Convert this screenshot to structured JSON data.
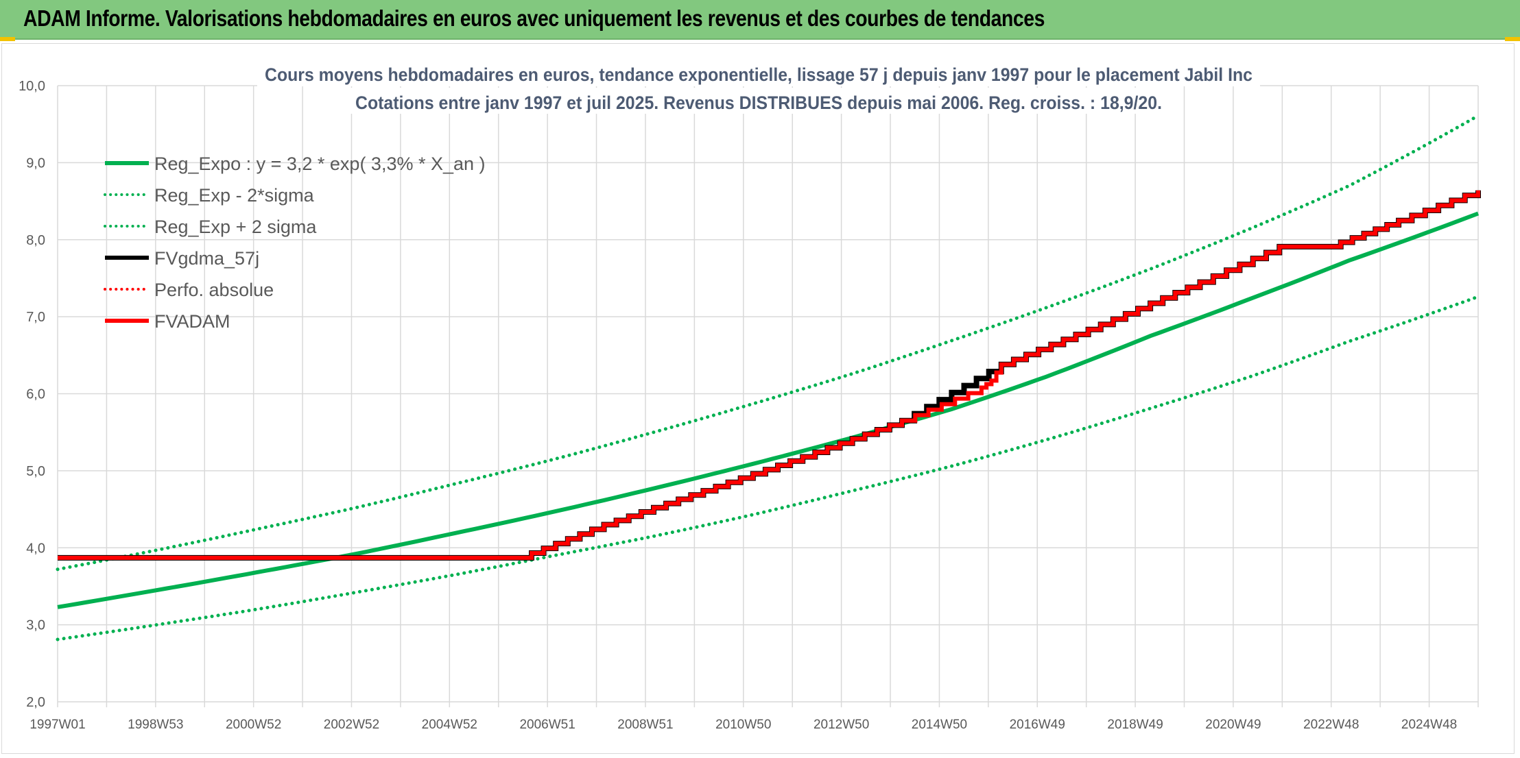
{
  "header": {
    "title": "ADAM Informe. Valorisations hebdomadaires en euros avec uniquement les revenus et des courbes de tendances"
  },
  "colors": {
    "header_bg": "#82c87f",
    "reg_green": "#00b050",
    "fvadam_red": "#ff0000",
    "fvgdma_black": "#000000",
    "grid": "#d9d9d9"
  },
  "chart_data": {
    "type": "line",
    "title_line1": "Cours moyens hebdomadaires en euros, tendance exponentielle, lissage 57 j depuis janv 1997 pour le placement Jabil Inc",
    "title_line2": "Cotations entre janv 1997 et juil 2025. Revenus DISTRIBUES depuis mai 2006. Reg. croiss. : 18,9/20.",
    "ylim": [
      2.0,
      10.0
    ],
    "y_ticks": [
      "2,0",
      "3,0",
      "4,0",
      "5,0",
      "6,0",
      "7,0",
      "8,0",
      "9,0",
      "10,0"
    ],
    "x_ticks": [
      "1997W01",
      "1998W53",
      "2000W52",
      "2002W52",
      "2004W52",
      "2006W51",
      "2008W51",
      "2010W50",
      "2012W50",
      "2014W50",
      "2016W49",
      "2018W49",
      "2020W49",
      "2022W48",
      "2024W48"
    ],
    "x_range_years": [
      1997.0,
      2025.6
    ],
    "grid": true,
    "legend_position": "top-left",
    "legend": [
      {
        "label": "Reg_Expo : y = 3,2 * exp( 3,3% *  X_an )",
        "color": "#00b050",
        "style": "solid"
      },
      {
        "label": "Reg_Exp - 2*sigma",
        "color": "#00b050",
        "style": "dotted"
      },
      {
        "label": "Reg_Exp + 2 sigma",
        "color": "#00b050",
        "style": "dotted"
      },
      {
        "label": "FVgdma_57j",
        "color": "#000000",
        "style": "solid"
      },
      {
        "label": "Perfo. absolue",
        "color": "#ff0000",
        "style": "dotted"
      },
      {
        "label": "FVADAM",
        "color": "#ff0000",
        "style": "solid"
      }
    ],
    "series": [
      {
        "name": "Reg_Expo : y = 3,2 * exp( 3,3% *  X_an )",
        "x": [
          1997,
          1999,
          2001,
          2003,
          2005,
          2007,
          2009,
          2011,
          2013,
          2015,
          2016.9,
          2019,
          2021,
          2023,
          2025.6
        ],
        "y": [
          3.23,
          3.45,
          3.68,
          3.92,
          4.19,
          4.47,
          4.77,
          5.09,
          5.43,
          5.8,
          6.22,
          6.75,
          7.23,
          7.73,
          8.34
        ]
      },
      {
        "name": "Reg_Exp - 2*sigma",
        "x": [
          1997,
          1999,
          2001,
          2003,
          2005,
          2007,
          2009,
          2011,
          2013,
          2015,
          2017,
          2019,
          2021,
          2023,
          2025.6
        ],
        "y": [
          2.81,
          3.0,
          3.2,
          3.42,
          3.65,
          3.9,
          4.15,
          4.43,
          4.74,
          5.06,
          5.42,
          5.81,
          6.22,
          6.68,
          7.26
        ]
      },
      {
        "name": "Reg_Exp + 2 sigma",
        "x": [
          1997,
          1999,
          2001,
          2003,
          2005,
          2007,
          2009,
          2011,
          2013,
          2015,
          2017,
          2019,
          2021,
          2023,
          2025.6
        ],
        "y": [
          3.72,
          3.97,
          4.24,
          4.52,
          4.83,
          5.15,
          5.5,
          5.87,
          6.26,
          6.69,
          7.14,
          7.62,
          8.14,
          8.7,
          9.61
        ]
      },
      {
        "name": "FVgdma_57j",
        "x": [
          1997,
          2006.3,
          2008,
          2010,
          2012,
          2014,
          2016,
          2018,
          2020,
          2021.6,
          2022.6,
          2024,
          2025.6
        ],
        "y": [
          3.87,
          3.87,
          4.3,
          4.74,
          5.18,
          5.65,
          6.38,
          6.9,
          7.45,
          7.91,
          7.91,
          8.25,
          8.64
        ]
      },
      {
        "name": "FVADAM",
        "x": [
          1997,
          2006.3,
          2008,
          2010,
          2012,
          2014,
          2015.6,
          2015.8,
          2016,
          2018,
          2020,
          2021.6,
          2022.6,
          2024,
          2025.6
        ],
        "y": [
          3.87,
          3.87,
          4.3,
          4.74,
          5.18,
          5.65,
          6.08,
          6.17,
          6.38,
          6.9,
          7.45,
          7.91,
          7.91,
          8.25,
          8.64
        ]
      }
    ]
  }
}
